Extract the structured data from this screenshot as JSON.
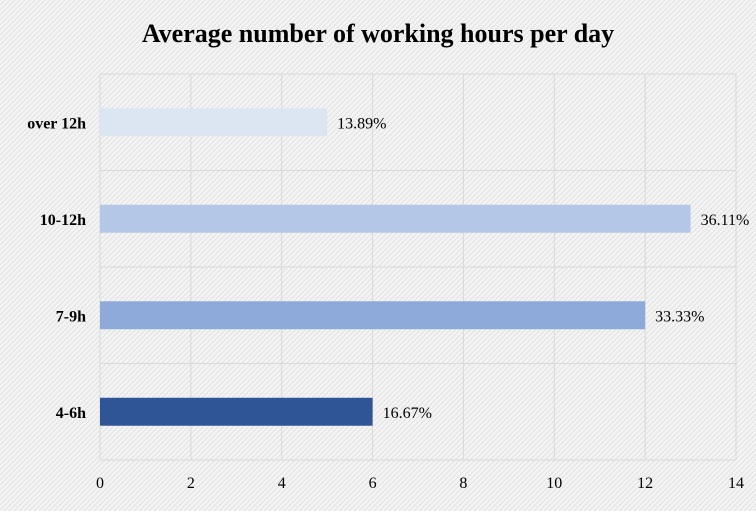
{
  "chart_data": {
    "type": "bar",
    "orientation": "horizontal",
    "title": "Average number of working hours per day",
    "categories": [
      "over 12h",
      "10-12h",
      "7-9h",
      "4-6h"
    ],
    "values": [
      5,
      13,
      12,
      6
    ],
    "data_labels": [
      "13.89%",
      "36.11%",
      "33.33%",
      "16.67%"
    ],
    "bar_colors": [
      "#dce6f2",
      "#b4c7e7",
      "#8eaadb",
      "#2f5597"
    ],
    "xlim": [
      0,
      14
    ],
    "x_ticks": [
      "0",
      "2",
      "4",
      "6",
      "8",
      "10",
      "12",
      "14"
    ],
    "grid": true,
    "legend": "none",
    "xlabel": "",
    "ylabel": ""
  },
  "colors": {
    "plot_background": "#f2f2f2",
    "gridline": "#d9d9d9"
  }
}
